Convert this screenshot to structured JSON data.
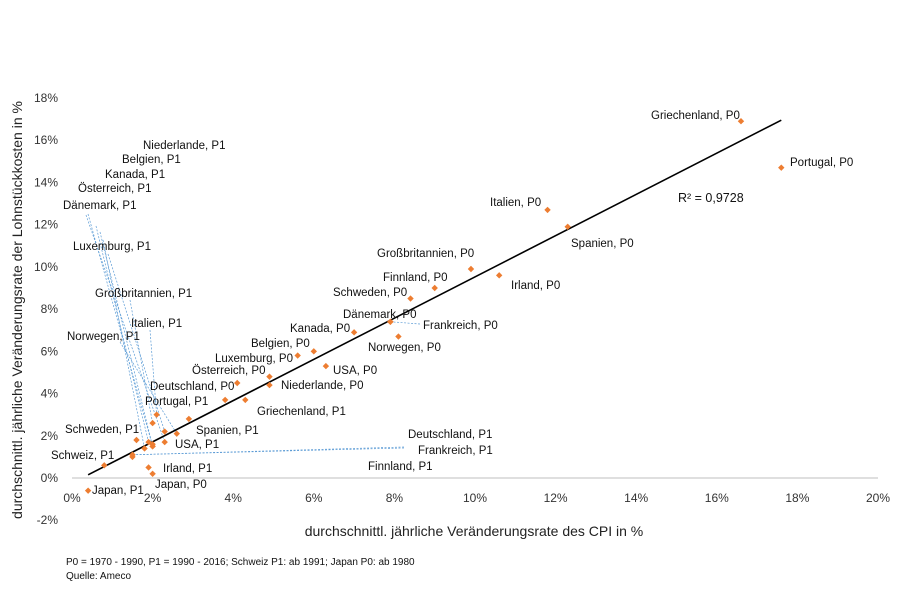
{
  "chart_data": {
    "type": "scatter",
    "xlabel": "durchschnittl. jährliche Veränderungsrate des CPI in %",
    "ylabel": "durchschnittl. jährliche Veränderungsrate der Lohnstückkosten in %",
    "xlim": [
      0,
      20
    ],
    "ylim": [
      -2,
      18
    ],
    "xticks": [
      "0%",
      "2%",
      "4%",
      "6%",
      "8%",
      "10%",
      "12%",
      "14%",
      "16%",
      "18%",
      "20%"
    ],
    "yticks": [
      "-2%",
      "0%",
      "2%",
      "4%",
      "6%",
      "8%",
      "10%",
      "12%",
      "14%",
      "16%",
      "18%"
    ],
    "grid": false,
    "legend": "none",
    "marker_color": "#ED7D31",
    "trendline": {
      "x": [
        0.4,
        17.6
      ],
      "y": [
        0.15,
        16.95
      ],
      "color": "#000000"
    },
    "r2_label": "R² = 0,9728",
    "points": [
      {
        "label": "Griechenland, P0",
        "x": 16.6,
        "y": 16.9
      },
      {
        "label": "Portugal, P0",
        "x": 17.6,
        "y": 14.7
      },
      {
        "label": "Italien, P0",
        "x": 11.8,
        "y": 12.7
      },
      {
        "label": "Spanien, P0",
        "x": 12.3,
        "y": 11.9
      },
      {
        "label": "Großbritannien, P0",
        "x": 9.9,
        "y": 9.9
      },
      {
        "label": "Irland, P0",
        "x": 10.6,
        "y": 9.6
      },
      {
        "label": "Finnland, P0",
        "x": 9.0,
        "y": 9.0
      },
      {
        "label": "Schweden, P0",
        "x": 8.4,
        "y": 8.5
      },
      {
        "label": "Dänemark, P0",
        "x": 7.9,
        "y": 7.4
      },
      {
        "label": "Frankreich, P0",
        "x": 7.9,
        "y": 7.4
      },
      {
        "label": "Norwegen, P0",
        "x": 8.1,
        "y": 6.7
      },
      {
        "label": "Kanada, P0",
        "x": 7.0,
        "y": 6.9
      },
      {
        "label": "Belgien, P0",
        "x": 6.0,
        "y": 6.0
      },
      {
        "label": "Luxemburg, P0",
        "x": 5.6,
        "y": 5.8
      },
      {
        "label": "USA, P0",
        "x": 6.3,
        "y": 5.3
      },
      {
        "label": "Österreich, P0",
        "x": 4.9,
        "y": 4.8
      },
      {
        "label": "Niederlande, P0",
        "x": 4.9,
        "y": 4.4
      },
      {
        "label": "Deutschland, P0",
        "x": 4.1,
        "y": 4.5
      },
      {
        "label": "Griechenland, P1",
        "x": 4.3,
        "y": 3.7
      },
      {
        "label": "Portugal, P1",
        "x": 3.8,
        "y": 3.7
      },
      {
        "label": "Spanien, P1",
        "x": 2.9,
        "y": 2.8
      },
      {
        "label": "Italien, P1",
        "x": 2.1,
        "y": 3.0
      },
      {
        "label": "Großbritannien, P1",
        "x": 2.0,
        "y": 2.6
      },
      {
        "label": "Luxemburg, P1",
        "x": 2.3,
        "y": 2.2
      },
      {
        "label": "Norwegen, P1",
        "x": 2.6,
        "y": 2.1
      },
      {
        "label": "Niederlande, P1",
        "x": 2.3,
        "y": 1.7
      },
      {
        "label": "USA, P1",
        "x": 2.0,
        "y": 1.6
      },
      {
        "label": "Schweden, P1",
        "x": 1.6,
        "y": 1.8
      },
      {
        "label": "Kanada, P1",
        "x": 1.9,
        "y": 1.7
      },
      {
        "label": "Belgien, P1",
        "x": 2.0,
        "y": 1.5
      },
      {
        "label": "Österreich, P1",
        "x": 1.8,
        "y": 1.4
      },
      {
        "label": "Dänemark, P1",
        "x": 2.0,
        "y": 1.5
      },
      {
        "label": "Deutschland, P1",
        "x": 1.5,
        "y": 1.1
      },
      {
        "label": "Frankreich, P1",
        "x": 1.5,
        "y": 1.1
      },
      {
        "label": "Finnland, P1",
        "x": 1.5,
        "y": 1.0
      },
      {
        "label": "Schweiz, P1",
        "x": 0.8,
        "y": 0.6
      },
      {
        "label": "Irland, P1",
        "x": 1.9,
        "y": 0.5
      },
      {
        "label": "Japan, P0",
        "x": 2.0,
        "y": 0.2
      },
      {
        "label": "Japan, P1",
        "x": 0.4,
        "y": -0.6
      }
    ]
  },
  "footnote": "P0 = 1970 - 1990, P1 = 1990 - 2016; Schweiz P1: ab 1991; Japan P0: ab 1980",
  "source": "Quelle: Ameco"
}
